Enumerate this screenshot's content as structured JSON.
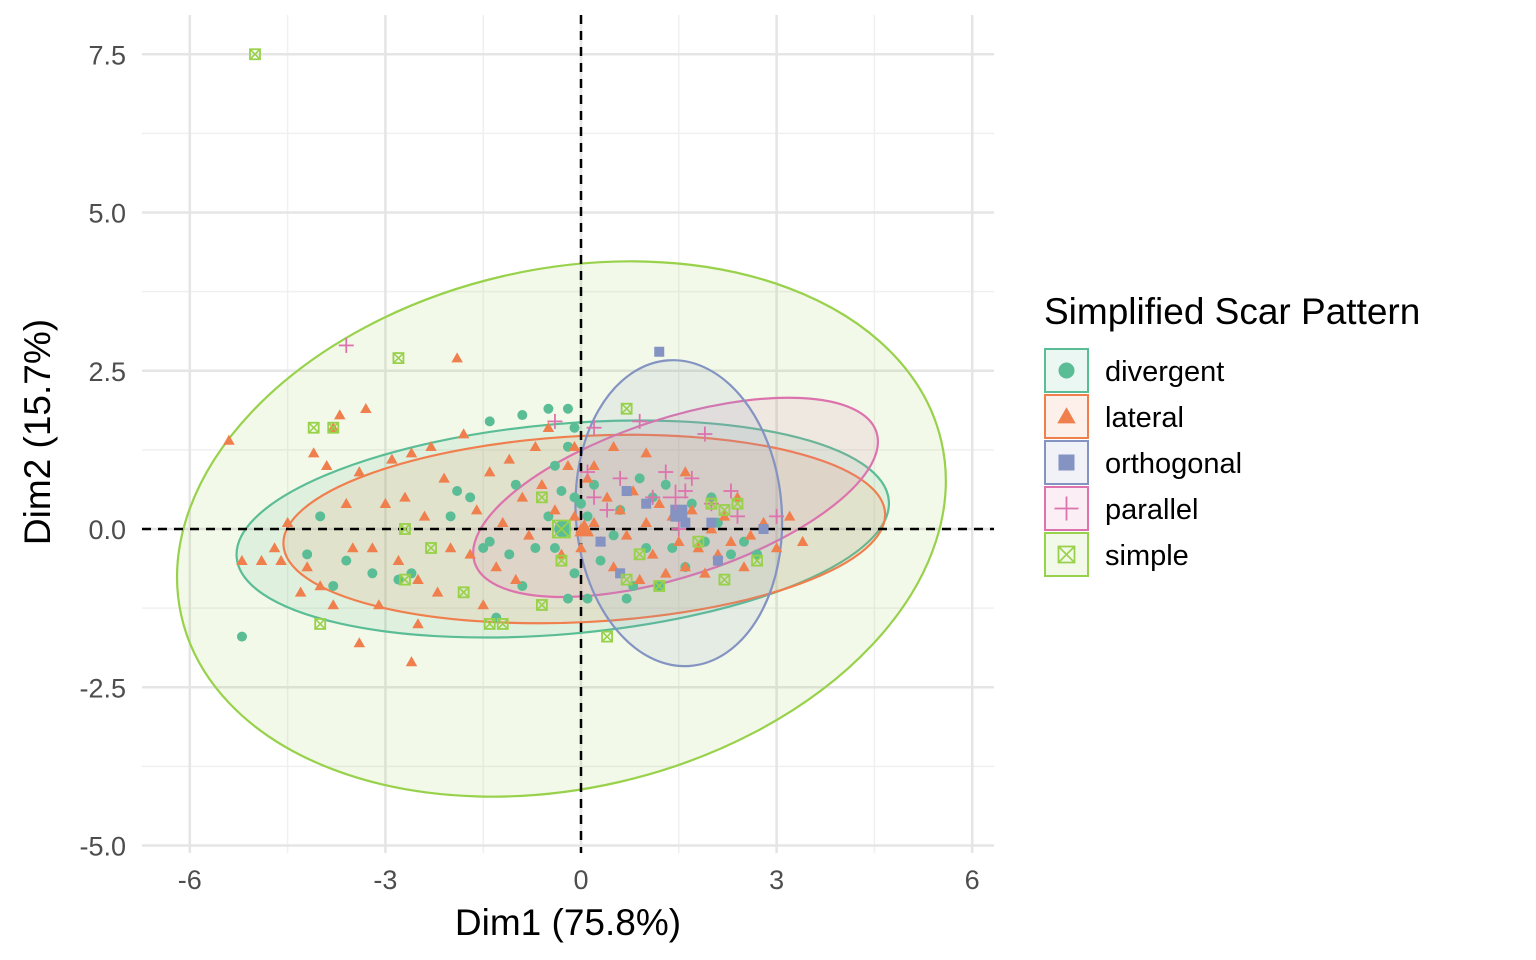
{
  "chart_data": {
    "type": "scatter",
    "title": "",
    "xlabel": "Dim1 (75.8%)",
    "ylabel": "Dim2 (15.7%)",
    "xlim": [
      -6.6,
      6.6
    ],
    "ylim": [
      -5.0,
      7.8
    ],
    "x_ticks": [
      -6,
      -3,
      0,
      3,
      6
    ],
    "x_tick_labels": [
      "-6",
      "-3",
      "0",
      "3",
      "6"
    ],
    "y_ticks": [
      -5.0,
      -2.5,
      0.0,
      2.5,
      5.0,
      7.5
    ],
    "y_tick_labels": [
      "-5.0",
      "-2.5",
      "0.0",
      "2.5",
      "5.0",
      "7.5"
    ],
    "grid": true,
    "reference_lines": {
      "x": 0,
      "y": 0,
      "style": "dashed"
    },
    "legend": {
      "title": "Simplified Scar Pattern",
      "position": "right"
    },
    "series": [
      {
        "name": "divergent",
        "color": "#5bbd96",
        "marker": "circle",
        "centroid": [
          -0.28,
          0.0
        ],
        "ellipse": {
          "cx": -0.28,
          "cy": 0.0,
          "rx": 5.02,
          "ry": 1.66,
          "angle_deg": -5
        },
        "points": [
          [
            -5.2,
            -1.7
          ],
          [
            -4.0,
            0.2
          ],
          [
            -4.2,
            -0.4
          ],
          [
            -3.8,
            -0.9
          ],
          [
            -3.6,
            -0.5
          ],
          [
            -3.2,
            -0.7
          ],
          [
            -2.8,
            -0.8
          ],
          [
            -2.6,
            -0.7
          ],
          [
            -2.0,
            0.2
          ],
          [
            -1.9,
            0.6
          ],
          [
            -1.7,
            0.5
          ],
          [
            -1.5,
            -0.3
          ],
          [
            -1.4,
            -0.2
          ],
          [
            -1.3,
            -1.4
          ],
          [
            -1.1,
            -0.4
          ],
          [
            -0.9,
            -0.9
          ],
          [
            -1.4,
            1.7
          ],
          [
            -1.0,
            0.7
          ],
          [
            -0.9,
            1.8
          ],
          [
            -0.7,
            -0.3
          ],
          [
            -0.5,
            0.2
          ],
          [
            -0.5,
            1.9
          ],
          [
            -0.4,
            -0.3
          ],
          [
            -0.4,
            1.0
          ],
          [
            -0.3,
            0.6
          ],
          [
            -0.2,
            1.3
          ],
          [
            -0.2,
            1.9
          ],
          [
            -0.2,
            -1.1
          ],
          [
            -0.1,
            0.5
          ],
          [
            -0.1,
            -0.7
          ],
          [
            0.0,
            0.4
          ],
          [
            0.1,
            0.2
          ],
          [
            0.1,
            -1.1
          ],
          [
            0.2,
            0.7
          ],
          [
            0.3,
            -0.5
          ],
          [
            0.5,
            -0.1
          ],
          [
            0.6,
            0.3
          ],
          [
            0.7,
            -1.1
          ],
          [
            0.8,
            -0.9
          ],
          [
            0.9,
            0.8
          ],
          [
            1.0,
            -0.3
          ],
          [
            1.1,
            0.5
          ],
          [
            1.2,
            -0.9
          ],
          [
            1.3,
            0.7
          ],
          [
            1.4,
            -0.3
          ],
          [
            1.5,
            0.2
          ],
          [
            1.6,
            -0.6
          ],
          [
            1.7,
            0.4
          ],
          [
            1.9,
            -0.2
          ],
          [
            2.1,
            0.1
          ],
          [
            2.3,
            -0.4
          ],
          [
            2.5,
            -0.2
          ],
          [
            2.7,
            -0.4
          ],
          [
            2.0,
            0.5
          ],
          [
            -0.1,
            1.6
          ]
        ]
      },
      {
        "name": "lateral",
        "color": "#f07f4e",
        "marker": "triangle",
        "centroid": [
          0.05,
          0.0
        ],
        "ellipse": {
          "cx": 0.05,
          "cy": 0.0,
          "rx": 4.62,
          "ry": 1.47,
          "angle_deg": -3
        },
        "points": [
          [
            -5.4,
            1.4
          ],
          [
            -5.2,
            -0.5
          ],
          [
            -4.9,
            -0.5
          ],
          [
            -4.7,
            -0.3
          ],
          [
            -4.6,
            -0.5
          ],
          [
            -4.5,
            0.1
          ],
          [
            -4.3,
            -1.0
          ],
          [
            -4.2,
            -0.6
          ],
          [
            -4.1,
            1.2
          ],
          [
            -4.0,
            -0.9
          ],
          [
            -3.9,
            1.0
          ],
          [
            -3.8,
            1.6
          ],
          [
            -3.8,
            -1.2
          ],
          [
            -3.7,
            1.8
          ],
          [
            -3.6,
            0.4
          ],
          [
            -3.5,
            -0.3
          ],
          [
            -3.4,
            0.9
          ],
          [
            -3.3,
            1.9
          ],
          [
            -3.2,
            -0.3
          ],
          [
            -3.1,
            -1.2
          ],
          [
            -3.0,
            0.4
          ],
          [
            -2.9,
            1.1
          ],
          [
            -2.8,
            -0.5
          ],
          [
            -2.7,
            0.5
          ],
          [
            -2.6,
            1.2
          ],
          [
            -2.5,
            -0.8
          ],
          [
            -2.4,
            0.2
          ],
          [
            -2.3,
            1.3
          ],
          [
            -2.2,
            -1.0
          ],
          [
            -2.1,
            0.8
          ],
          [
            -2.0,
            -0.3
          ],
          [
            -1.9,
            2.7
          ],
          [
            -1.8,
            1.5
          ],
          [
            -1.7,
            -0.4
          ],
          [
            -1.6,
            0.3
          ],
          [
            -1.5,
            -1.2
          ],
          [
            -1.4,
            0.9
          ],
          [
            -1.3,
            -0.6
          ],
          [
            -1.2,
            0.1
          ],
          [
            -1.1,
            1.1
          ],
          [
            -1.0,
            -0.8
          ],
          [
            -0.9,
            0.5
          ],
          [
            -0.8,
            -0.1
          ],
          [
            -0.7,
            1.3
          ],
          [
            -0.6,
            0.7
          ],
          [
            -0.5,
            1.6
          ],
          [
            -0.4,
            0.3
          ],
          [
            -0.3,
            -0.4
          ],
          [
            -0.2,
            1.0
          ],
          [
            -0.1,
            0.2
          ],
          [
            0.0,
            -0.3
          ],
          [
            0.1,
            0.8
          ],
          [
            0.2,
            0.1
          ],
          [
            0.3,
            -0.2
          ],
          [
            0.4,
            0.5
          ],
          [
            0.5,
            -0.6
          ],
          [
            0.6,
            0.3
          ],
          [
            0.7,
            -0.1
          ],
          [
            0.8,
            0.6
          ],
          [
            0.9,
            -0.8
          ],
          [
            1.0,
            0.1
          ],
          [
            1.1,
            -0.4
          ],
          [
            1.2,
            0.4
          ],
          [
            1.3,
            -0.7
          ],
          [
            1.4,
            0.2
          ],
          [
            1.5,
            -0.2
          ],
          [
            1.6,
            -0.6
          ],
          [
            1.7,
            0.3
          ],
          [
            1.8,
            -0.3
          ],
          [
            1.9,
            -0.7
          ],
          [
            2.0,
            0.0
          ],
          [
            2.1,
            -0.4
          ],
          [
            2.2,
            0.2
          ],
          [
            2.3,
            -0.2
          ],
          [
            2.4,
            0.5
          ],
          [
            2.5,
            -0.6
          ],
          [
            2.6,
            -0.1
          ],
          [
            2.8,
            0.1
          ],
          [
            3.0,
            -0.3
          ],
          [
            3.2,
            0.2
          ],
          [
            3.4,
            -0.2
          ],
          [
            -2.6,
            -2.1
          ],
          [
            -3.4,
            -1.8
          ],
          [
            -2.5,
            -1.5
          ],
          [
            0.0,
            0.0
          ],
          [
            -0.1,
            1.3
          ],
          [
            0.2,
            1.0
          ],
          [
            0.5,
            1.3
          ],
          [
            1.0,
            1.2
          ],
          [
            1.6,
            0.9
          ]
        ]
      },
      {
        "name": "orthogonal",
        "color": "#8493c2",
        "marker": "square",
        "centroid": [
          1.5,
          0.25
        ],
        "ellipse": {
          "cx": 1.5,
          "cy": 0.25,
          "rx": 1.58,
          "ry": 2.42,
          "angle_deg": -4
        },
        "points": [
          [
            1.2,
            2.8
          ],
          [
            2.1,
            -0.5
          ],
          [
            0.7,
            0.6
          ],
          [
            1.5,
            0.3
          ],
          [
            0.3,
            -0.2
          ],
          [
            2.0,
            0.1
          ],
          [
            1.0,
            0.4
          ],
          [
            0.6,
            -0.7
          ],
          [
            2.8,
            0.0
          ],
          [
            1.6,
            0.1
          ]
        ]
      },
      {
        "name": "parallel",
        "color": "#dd73ad",
        "marker": "plus",
        "centroid": [
          1.45,
          0.5
        ],
        "ellipse": {
          "cx": 1.45,
          "cy": 0.5,
          "rx": 3.24,
          "ry": 1.25,
          "angle_deg": -18
        },
        "points": [
          [
            -3.6,
            2.9
          ],
          [
            -0.4,
            1.7
          ],
          [
            0.2,
            1.6
          ],
          [
            0.6,
            0.8
          ],
          [
            0.9,
            1.7
          ],
          [
            1.1,
            0.5
          ],
          [
            1.3,
            0.9
          ],
          [
            1.6,
            0.6
          ],
          [
            1.7,
            0.8
          ],
          [
            1.9,
            1.5
          ],
          [
            2.0,
            0.4
          ],
          [
            2.3,
            0.6
          ],
          [
            2.4,
            0.2
          ],
          [
            3.0,
            0.2
          ],
          [
            0.4,
            0.3
          ],
          [
            0.1,
            0.9
          ],
          [
            0.2,
            0.5
          ],
          [
            1.5,
            0.0
          ]
        ]
      },
      {
        "name": "simple",
        "color": "#98d14a",
        "marker": "square-x",
        "centroid": [
          -0.3,
          0.0
        ],
        "ellipse": {
          "cx": -0.3,
          "cy": 0.0,
          "rx": 5.98,
          "ry": 4.1,
          "angle_deg": -13
        },
        "points": [
          [
            -5.0,
            7.5
          ],
          [
            -2.8,
            2.7
          ],
          [
            -4.1,
            1.6
          ],
          [
            -3.8,
            1.6
          ],
          [
            -4.0,
            -1.5
          ],
          [
            -2.7,
            0.0
          ],
          [
            -2.3,
            -0.3
          ],
          [
            -1.8,
            -1.0
          ],
          [
            -1.4,
            -1.5
          ],
          [
            -1.2,
            -1.5
          ],
          [
            -0.6,
            -1.2
          ],
          [
            -0.6,
            0.5
          ],
          [
            -0.3,
            -0.5
          ],
          [
            0.4,
            -1.7
          ],
          [
            0.7,
            1.9
          ],
          [
            0.7,
            -0.8
          ],
          [
            1.2,
            -0.9
          ],
          [
            1.8,
            -0.2
          ],
          [
            2.0,
            0.4
          ],
          [
            2.2,
            0.3
          ],
          [
            2.4,
            0.4
          ],
          [
            2.7,
            -0.5
          ],
          [
            2.2,
            -0.8
          ],
          [
            -2.7,
            -0.8
          ],
          [
            0.9,
            -0.4
          ]
        ]
      }
    ]
  }
}
